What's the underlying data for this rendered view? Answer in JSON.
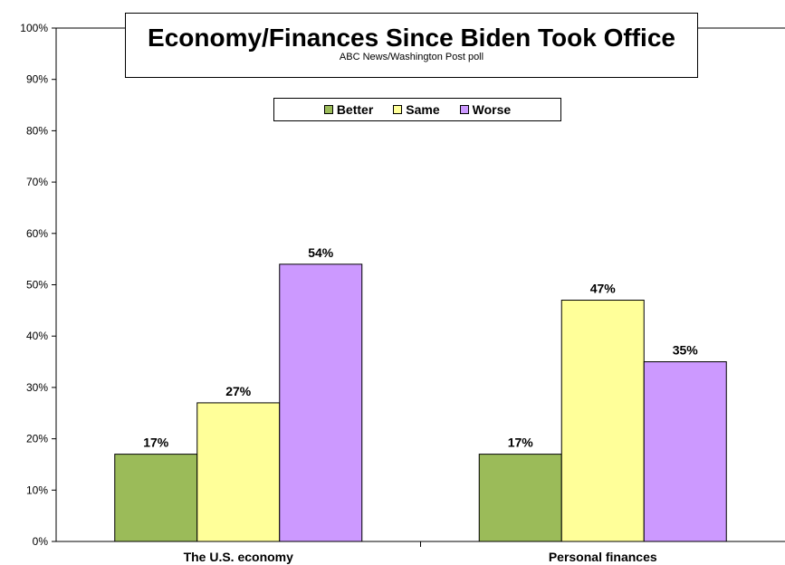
{
  "chart_data": {
    "type": "bar",
    "title": "Economy/Finances Since Biden Took Office",
    "subtitle": "ABC News/Washington Post poll",
    "categories": [
      "The U.S. economy",
      "Personal finances"
    ],
    "series": [
      {
        "name": "Better",
        "values": [
          17,
          17
        ],
        "color": "#9bbb59"
      },
      {
        "name": "Same",
        "values": [
          27,
          47
        ],
        "color": "#ffff99"
      },
      {
        "name": "Worse",
        "values": [
          54,
          35
        ],
        "color": "#cc99ff"
      }
    ],
    "value_suffix": "%",
    "ylim": [
      0,
      100
    ],
    "yticks": [
      0,
      10,
      20,
      30,
      40,
      50,
      60,
      70,
      80,
      90,
      100
    ],
    "ytick_labels": [
      "0%",
      "10%",
      "20%",
      "30%",
      "40%",
      "50%",
      "60%",
      "70%",
      "80%",
      "90%",
      "100%"
    ],
    "xlabel": "",
    "ylabel": "",
    "grid": false,
    "legend_position": "top-center"
  }
}
